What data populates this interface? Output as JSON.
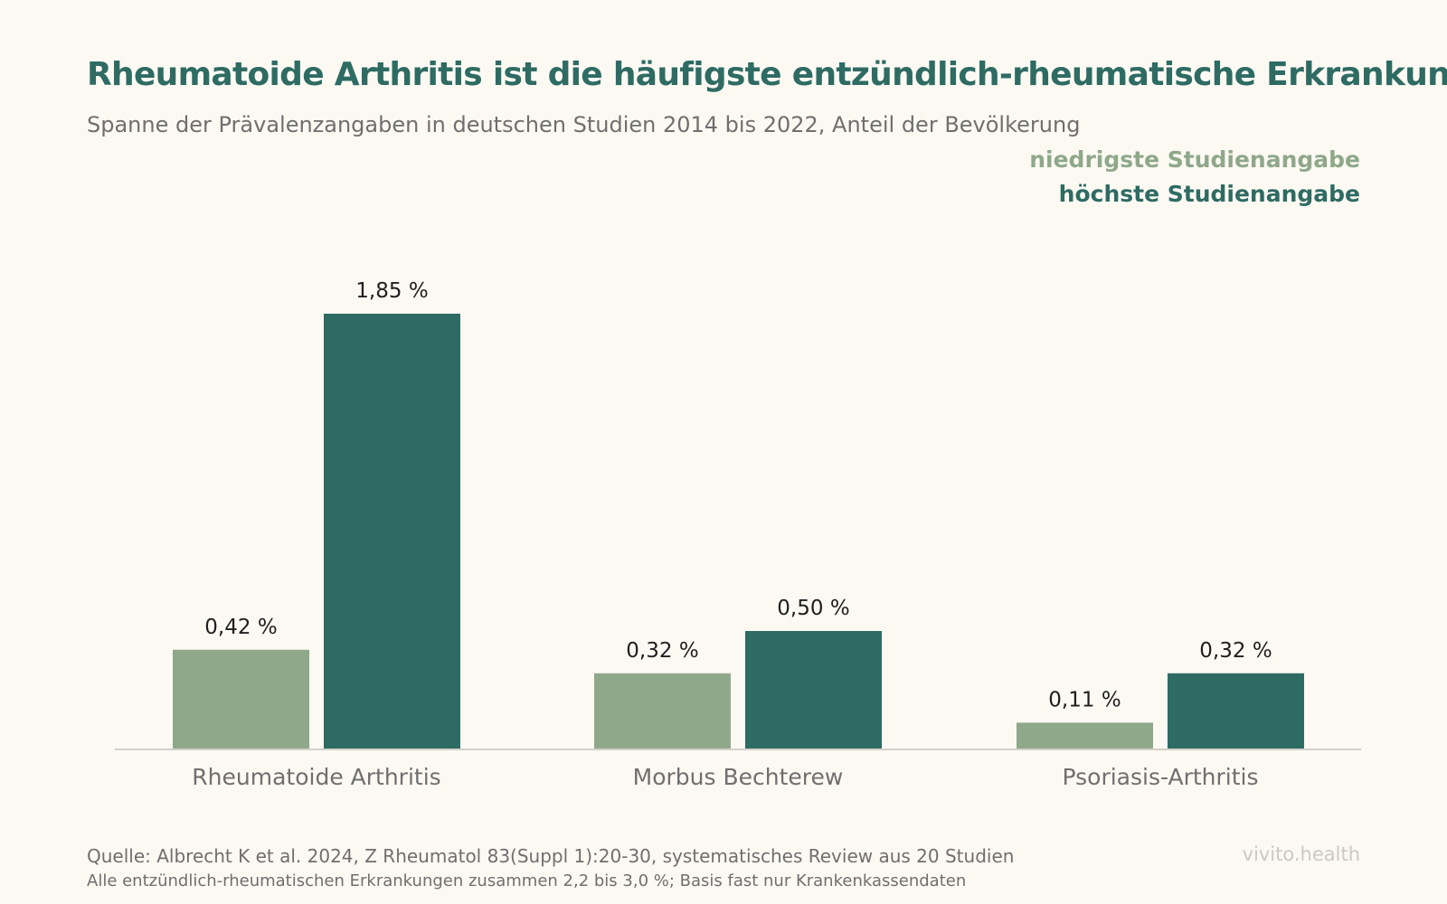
{
  "title": "Rheumatoide Arthritis ist die häufigste entzündlich-rheumatische Erkrankung",
  "subtitle": "Spanne der Prävalenzangaben in deutschen Studien 2014 bis 2022, Anteil der Bevölkerung",
  "legend": [
    {
      "label": "niedrigste Studienangabe",
      "color": "#8fa88a"
    },
    {
      "label": "höchste Studienangabe",
      "color": "#2e6b63"
    }
  ],
  "chart_data": {
    "type": "bar",
    "categories": [
      "Rheumatoide Arthritis",
      "Morbus Bechterew",
      "Psoriasis-Arthritis"
    ],
    "series": [
      {
        "name": "niedrigste Studienangabe",
        "values": [
          0.42,
          0.32,
          0.11
        ],
        "labels": [
          "0,42 %",
          "0,32 %",
          "0,11 %"
        ],
        "color": "#8fa88a"
      },
      {
        "name": "höchste Studienangabe",
        "values": [
          1.85,
          0.5,
          0.32
        ],
        "labels": [
          "1,85 %",
          "0,50 %",
          "0,32 %"
        ],
        "color": "#2e6b63"
      }
    ],
    "ylim": [
      0,
      1.85
    ],
    "grid": false,
    "legend_position": "top-right"
  },
  "footer": {
    "source": "Quelle: Albrecht K et al. 2024, Z Rheumatol 83(Suppl 1):20-30, systematisches Review aus 20 Studien",
    "note": "Alle entzündlich-rheumatischen Erkrankungen zusammen 2,2 bis 3,0 %; Basis fast nur Krankenkassendaten",
    "brand": "vivito.health"
  }
}
